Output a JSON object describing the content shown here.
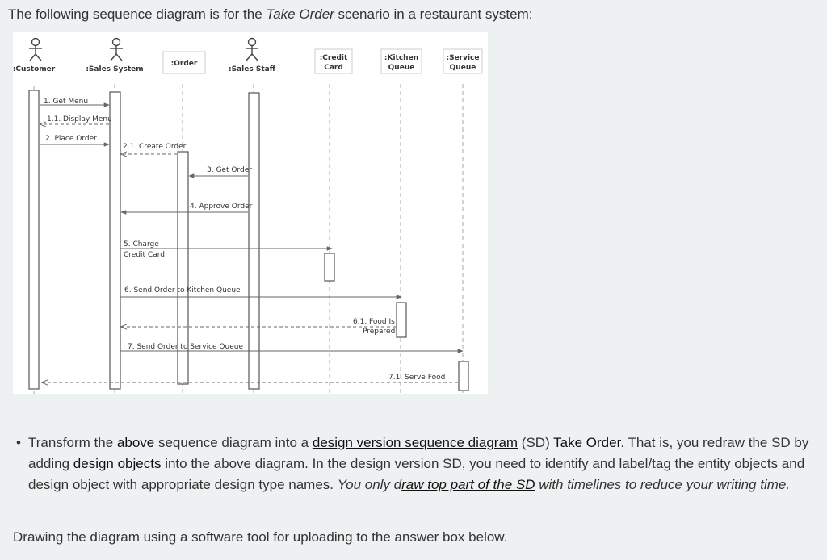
{
  "intro": {
    "prefix": "The following sequence diagram is for the ",
    "scenario": "Take Order",
    "suffix": " scenario in a restaurant system:"
  },
  "diagram": {
    "participants": [
      {
        "id": "customer",
        "label": ":Customer",
        "kind": "actor"
      },
      {
        "id": "sales_system",
        "label": ":Sales System",
        "kind": "actor"
      },
      {
        "id": "order",
        "label": ":Order",
        "kind": "object"
      },
      {
        "id": "sales_staff",
        "label": ":Sales Staff",
        "kind": "actor"
      },
      {
        "id": "credit_card",
        "label_lines": [
          ":Credit",
          "Card"
        ],
        "kind": "object"
      },
      {
        "id": "kitchen_queue",
        "label_lines": [
          ":Kitchen",
          "Queue"
        ],
        "kind": "object"
      },
      {
        "id": "service_queue",
        "label_lines": [
          ":Service",
          "Queue"
        ],
        "kind": "object"
      }
    ],
    "messages": [
      {
        "label": "1. Get Menu",
        "from": "customer",
        "to": "sales_system",
        "type": "sync"
      },
      {
        "label": "1.1. Display Menu",
        "from": "sales_system",
        "to": "customer",
        "type": "return"
      },
      {
        "label": "2. Place Order",
        "from": "customer",
        "to": "sales_system",
        "type": "sync"
      },
      {
        "label": "2.1. Create Order",
        "from": "sales_system",
        "to": "order",
        "type": "return"
      },
      {
        "label": "3. Get Order",
        "from": "sales_staff",
        "to": "order",
        "type": "sync"
      },
      {
        "label": "4. Approve Order",
        "from": "sales_staff",
        "to": "sales_system",
        "type": "sync"
      },
      {
        "label_lines": [
          "5. Charge",
          "Credit Card"
        ],
        "from": "sales_system",
        "to": "credit_card",
        "type": "sync"
      },
      {
        "label": "6. Send Order to Kitchen Queue",
        "from": "sales_system",
        "to": "kitchen_queue",
        "type": "sync"
      },
      {
        "label_lines": [
          "6.1. Food Is",
          "Prepared"
        ],
        "from": "kitchen_queue",
        "to": "sales_system",
        "type": "return"
      },
      {
        "label": "7. Send Order to Service Queue",
        "from": "sales_system",
        "to": "service_queue",
        "type": "sync"
      },
      {
        "label": "7.1. Serve Food",
        "from": "service_queue",
        "to": "customer",
        "type": "return"
      }
    ]
  },
  "task": {
    "p1": "Transform the ",
    "above": "above",
    "p2": " sequence diagram  into a ",
    "design_sd": "design version  sequence diagram",
    "p3": " (SD) ",
    "take_order": "Take Order",
    "p4": ".   That is, you redraw the SD by adding ",
    "design_objects": "design objects",
    "p5": "  into the above diagram.  In the design version SD, you need to identify and label/tag the entity objects and design object with appropriate design type names. ",
    "italic_a": "You only d",
    "italic_underlined": "raw top part of the SD",
    "italic_b": " with timelines to reduce your writing time."
  },
  "footer": "Drawing the diagram using a software tool  for uploading to the answer box below."
}
